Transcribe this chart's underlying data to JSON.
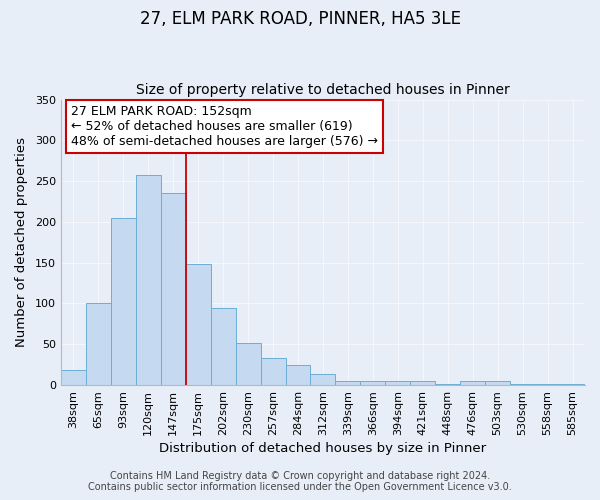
{
  "title": "27, ELM PARK ROAD, PINNER, HA5 3LE",
  "subtitle": "Size of property relative to detached houses in Pinner",
  "xlabel": "Distribution of detached houses by size in Pinner",
  "ylabel": "Number of detached properties",
  "bar_labels": [
    "38sqm",
    "65sqm",
    "93sqm",
    "120sqm",
    "147sqm",
    "175sqm",
    "202sqm",
    "230sqm",
    "257sqm",
    "284sqm",
    "312sqm",
    "339sqm",
    "366sqm",
    "394sqm",
    "421sqm",
    "448sqm",
    "476sqm",
    "503sqm",
    "530sqm",
    "558sqm",
    "585sqm"
  ],
  "bar_heights": [
    18,
    100,
    205,
    258,
    235,
    148,
    95,
    52,
    33,
    25,
    14,
    5,
    5,
    5,
    5,
    1,
    5,
    5,
    1,
    1,
    1
  ],
  "bar_color": "#c5d9f0",
  "bar_edge_color": "#6baed6",
  "vline_x": 4.5,
  "vline_color": "#cc0000",
  "annotation_title": "27 ELM PARK ROAD: 152sqm",
  "annotation_line1": "← 52% of detached houses are smaller (619)",
  "annotation_line2": "48% of semi-detached houses are larger (576) →",
  "annotation_box_color": "#ffffff",
  "annotation_box_edge": "#cc0000",
  "ylim": [
    0,
    350
  ],
  "yticks": [
    0,
    50,
    100,
    150,
    200,
    250,
    300,
    350
  ],
  "footer1": "Contains HM Land Registry data © Crown copyright and database right 2024.",
  "footer2": "Contains public sector information licensed under the Open Government Licence v3.0.",
  "bg_color": "#e8eef8",
  "grid_color": "#f5f7fc",
  "title_fontsize": 12,
  "subtitle_fontsize": 10,
  "axis_label_fontsize": 9.5,
  "tick_fontsize": 8,
  "annotation_fontsize": 9,
  "footer_fontsize": 7
}
